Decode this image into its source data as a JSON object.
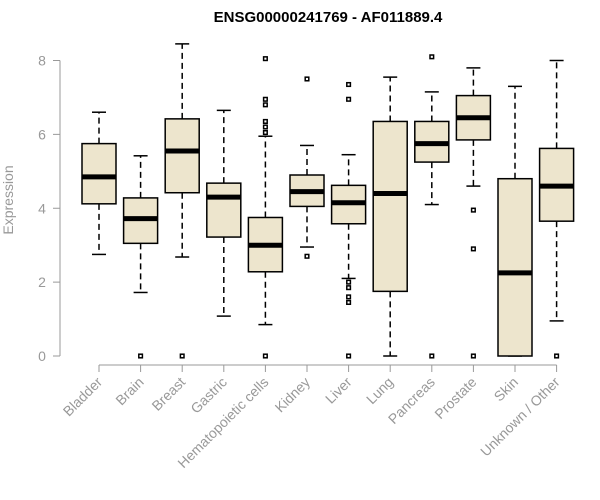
{
  "chart_data": {
    "type": "boxplot",
    "title": "ENSG00000241769 - AF011889.4",
    "xlabel": "",
    "ylabel": "Expression",
    "ylim": [
      0,
      8
    ],
    "yticks": [
      0,
      2,
      4,
      6,
      8
    ],
    "box_color": "#ede5cd",
    "categories": [
      "Bladder",
      "Brain",
      "Breast",
      "Gastric",
      "Hematopoietic cells",
      "Kidney",
      "Liver",
      "Lung",
      "Pancreas",
      "Prostate",
      "Skin",
      "Unknown / Other"
    ],
    "boxes": [
      {
        "name": "Bladder",
        "whisker_low": 2.75,
        "q1": 4.12,
        "median": 4.85,
        "q3": 5.75,
        "whisker_high": 6.6,
        "outliers": []
      },
      {
        "name": "Brain",
        "whisker_low": 1.72,
        "q1": 3.05,
        "median": 3.72,
        "q3": 4.28,
        "whisker_high": 5.42,
        "outliers": [
          0
        ]
      },
      {
        "name": "Breast",
        "whisker_low": 2.68,
        "q1": 4.42,
        "median": 5.55,
        "q3": 6.42,
        "whisker_high": 8.45,
        "outliers": [
          0
        ]
      },
      {
        "name": "Gastric",
        "whisker_low": 1.08,
        "q1": 3.22,
        "median": 4.3,
        "q3": 4.68,
        "whisker_high": 6.65,
        "outliers": []
      },
      {
        "name": "Hematopoietic cells",
        "whisker_low": 0.85,
        "q1": 2.28,
        "median": 3.0,
        "q3": 3.75,
        "whisker_high": 5.95,
        "outliers": [
          0,
          6.05,
          6.2,
          6.35,
          6.8,
          6.95,
          8.05
        ]
      },
      {
        "name": "Kidney",
        "whisker_low": 2.95,
        "q1": 4.05,
        "median": 4.45,
        "q3": 4.9,
        "whisker_high": 5.7,
        "outliers": [
          2.7,
          7.5
        ]
      },
      {
        "name": "Liver",
        "whisker_low": 2.1,
        "q1": 3.58,
        "median": 4.15,
        "q3": 4.62,
        "whisker_high": 5.45,
        "outliers": [
          0,
          1.45,
          1.6,
          1.85,
          2.0,
          6.95,
          7.35
        ]
      },
      {
        "name": "Lung",
        "whisker_low": 0,
        "q1": 1.75,
        "median": 4.4,
        "q3": 6.35,
        "whisker_high": 7.55,
        "outliers": []
      },
      {
        "name": "Pancreas",
        "whisker_low": 4.1,
        "q1": 5.25,
        "median": 5.75,
        "q3": 6.35,
        "whisker_high": 7.15,
        "outliers": [
          0,
          8.1
        ]
      },
      {
        "name": "Prostate",
        "whisker_low": 4.6,
        "q1": 5.85,
        "median": 6.45,
        "q3": 7.05,
        "whisker_high": 7.8,
        "outliers": [
          0,
          2.9,
          3.95
        ]
      },
      {
        "name": "Skin",
        "whisker_low": 0,
        "q1": 0,
        "median": 2.25,
        "q3": 4.8,
        "whisker_high": 7.3,
        "outliers": []
      },
      {
        "name": "Unknown / Other",
        "whisker_low": 0.95,
        "q1": 3.65,
        "median": 4.6,
        "q3": 5.62,
        "whisker_high": 8.0,
        "outliers": [
          0
        ]
      }
    ]
  }
}
